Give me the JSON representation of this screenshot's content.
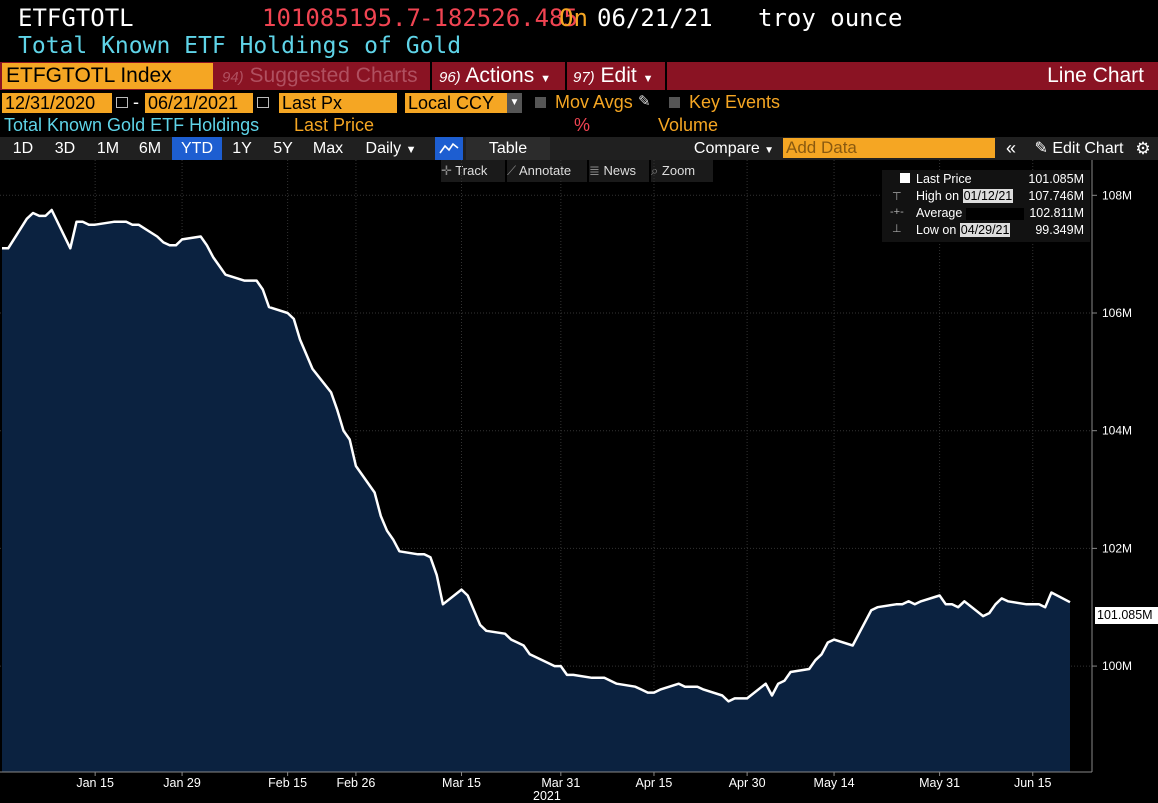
{
  "header": {
    "ticker": "ETFGTOTL",
    "last_value": "101085195.7",
    "change": "-182526.485",
    "on_label": "On",
    "date": "06/21/21",
    "unit": "troy ounce",
    "description": "Total Known ETF Holdings of Gold"
  },
  "menubar": {
    "index": "ETFGTOTL Index",
    "suggested_num": "94)",
    "suggested_label": "Suggested Charts",
    "actions_num": "96)",
    "actions_label": "Actions",
    "edit_num": "97)",
    "edit_label": "Edit",
    "chart_type": "Line Chart"
  },
  "controls": {
    "start_date": "12/31/2020",
    "end_date": "06/21/2021",
    "date_sep": "-",
    "field": "Last Px",
    "currency": "Local CCY",
    "mov_avgs": "Mov Avgs",
    "key_events": "Key Events"
  },
  "legend": {
    "series": "Total Known Gold ETF Holdings",
    "last_price": "Last Price",
    "percent": "%",
    "volume": "Volume"
  },
  "toolbar": {
    "periods": [
      "1D",
      "3D",
      "1M",
      "6M",
      "YTD",
      "1Y",
      "5Y",
      "Max"
    ],
    "active_period": "YTD",
    "frequency": "Daily",
    "table": "Table",
    "compare": "Compare",
    "add_data_placeholder": "Add Data",
    "edit_chart": "Edit Chart"
  },
  "subtools": {
    "track": "Track",
    "annotate": "Annotate",
    "news": "News",
    "zoom": "Zoom"
  },
  "infobox": {
    "last_label": "Last Price",
    "last_value": "101.085M",
    "high_label": "High on",
    "high_date": "01/12/21",
    "high_value": "107.746M",
    "avg_label": "Average",
    "avg_value": "102.811M",
    "low_label": "Low on",
    "low_date": "04/29/21",
    "low_value": "99.349M"
  },
  "colors": {
    "area_fill": "#0b2240",
    "line": "#ffffff",
    "accent": "#f5a623",
    "menubar": "#8a1323",
    "negative": "#f04452",
    "title_cyan": "#5fd4e8"
  },
  "chart_data": {
    "type": "area",
    "title": "Total Known ETF Holdings of Gold",
    "ylabel": "troy ounce",
    "ylim": [
      98.2,
      108.6
    ],
    "y_ticks": [
      100,
      102,
      104,
      106,
      108
    ],
    "y_tick_labels": [
      "100M",
      "102M",
      "104M",
      "106M",
      "108M"
    ],
    "last_value_label": "101.085M",
    "x_ticks": [
      {
        "date": "2021-01-15",
        "label": "Jan 15"
      },
      {
        "date": "2021-01-29",
        "label": "Jan 29"
      },
      {
        "date": "2021-02-15",
        "label": "Feb 15"
      },
      {
        "date": "2021-02-26",
        "label": "Feb 26"
      },
      {
        "date": "2021-03-15",
        "label": "Mar 15"
      },
      {
        "date": "2021-03-31",
        "label": "Mar 31"
      },
      {
        "date": "2021-04-15",
        "label": "Apr 15"
      },
      {
        "date": "2021-04-30",
        "label": "Apr 30"
      },
      {
        "date": "2021-05-14",
        "label": "May 14"
      },
      {
        "date": "2021-05-31",
        "label": "May 31"
      },
      {
        "date": "2021-06-15",
        "label": "Jun 15"
      }
    ],
    "x_year_label": "2021",
    "series": [
      {
        "values": [
          [
            "2020-12-31",
            107.1
          ],
          [
            "2021-01-01",
            107.1
          ],
          [
            "2021-01-04",
            107.6
          ],
          [
            "2021-01-05",
            107.7
          ],
          [
            "2021-01-06",
            107.65
          ],
          [
            "2021-01-07",
            107.65
          ],
          [
            "2021-01-08",
            107.75
          ],
          [
            "2021-01-11",
            107.1
          ],
          [
            "2021-01-12",
            107.55
          ],
          [
            "2021-01-13",
            107.55
          ],
          [
            "2021-01-14",
            107.5
          ],
          [
            "2021-01-15",
            107.5
          ],
          [
            "2021-01-18",
            107.55
          ],
          [
            "2021-01-19",
            107.55
          ],
          [
            "2021-01-20",
            107.55
          ],
          [
            "2021-01-21",
            107.5
          ],
          [
            "2021-01-22",
            107.5
          ],
          [
            "2021-01-25",
            107.3
          ],
          [
            "2021-01-26",
            107.2
          ],
          [
            "2021-01-27",
            107.15
          ],
          [
            "2021-01-28",
            107.15
          ],
          [
            "2021-01-29",
            107.25
          ],
          [
            "2021-02-01",
            107.3
          ],
          [
            "2021-02-02",
            107.15
          ],
          [
            "2021-02-03",
            106.95
          ],
          [
            "2021-02-04",
            106.8
          ],
          [
            "2021-02-05",
            106.65
          ],
          [
            "2021-02-08",
            106.55
          ],
          [
            "2021-02-09",
            106.55
          ],
          [
            "2021-02-10",
            106.55
          ],
          [
            "2021-02-11",
            106.4
          ],
          [
            "2021-02-12",
            106.1
          ],
          [
            "2021-02-15",
            106.0
          ],
          [
            "2021-02-16",
            105.9
          ],
          [
            "2021-02-17",
            105.55
          ],
          [
            "2021-02-18",
            105.3
          ],
          [
            "2021-02-19",
            105.05
          ],
          [
            "2021-02-22",
            104.65
          ],
          [
            "2021-02-23",
            104.35
          ],
          [
            "2021-02-24",
            104.0
          ],
          [
            "2021-02-25",
            103.85
          ],
          [
            "2021-02-26",
            103.4
          ],
          [
            "2021-03-01",
            102.95
          ],
          [
            "2021-03-02",
            102.55
          ],
          [
            "2021-03-03",
            102.3
          ],
          [
            "2021-03-04",
            102.15
          ],
          [
            "2021-03-05",
            101.95
          ],
          [
            "2021-03-08",
            101.9
          ],
          [
            "2021-03-09",
            101.9
          ],
          [
            "2021-03-10",
            101.85
          ],
          [
            "2021-03-11",
            101.55
          ],
          [
            "2021-03-12",
            101.05
          ],
          [
            "2021-03-15",
            101.3
          ],
          [
            "2021-03-16",
            101.2
          ],
          [
            "2021-03-17",
            100.95
          ],
          [
            "2021-03-18",
            100.7
          ],
          [
            "2021-03-19",
            100.6
          ],
          [
            "2021-03-22",
            100.55
          ],
          [
            "2021-03-23",
            100.45
          ],
          [
            "2021-03-24",
            100.4
          ],
          [
            "2021-03-25",
            100.35
          ],
          [
            "2021-03-26",
            100.2
          ],
          [
            "2021-03-29",
            100.05
          ],
          [
            "2021-03-30",
            100.0
          ],
          [
            "2021-03-31",
            100.0
          ],
          [
            "2021-04-01",
            99.85
          ],
          [
            "2021-04-02",
            99.85
          ],
          [
            "2021-04-05",
            99.8
          ],
          [
            "2021-04-06",
            99.8
          ],
          [
            "2021-04-07",
            99.8
          ],
          [
            "2021-04-08",
            99.75
          ],
          [
            "2021-04-09",
            99.7
          ],
          [
            "2021-04-12",
            99.65
          ],
          [
            "2021-04-13",
            99.6
          ],
          [
            "2021-04-14",
            99.55
          ],
          [
            "2021-04-15",
            99.55
          ],
          [
            "2021-04-16",
            99.6
          ],
          [
            "2021-04-19",
            99.7
          ],
          [
            "2021-04-20",
            99.65
          ],
          [
            "2021-04-21",
            99.65
          ],
          [
            "2021-04-22",
            99.65
          ],
          [
            "2021-04-23",
            99.6
          ],
          [
            "2021-04-26",
            99.5
          ],
          [
            "2021-04-27",
            99.4
          ],
          [
            "2021-04-28",
            99.45
          ],
          [
            "2021-04-29",
            99.45
          ],
          [
            "2021-04-30",
            99.45
          ],
          [
            "2021-05-03",
            99.7
          ],
          [
            "2021-05-04",
            99.5
          ],
          [
            "2021-05-05",
            99.7
          ],
          [
            "2021-05-06",
            99.75
          ],
          [
            "2021-05-07",
            99.9
          ],
          [
            "2021-05-10",
            99.95
          ],
          [
            "2021-05-11",
            100.1
          ],
          [
            "2021-05-12",
            100.2
          ],
          [
            "2021-05-13",
            100.4
          ],
          [
            "2021-05-14",
            100.45
          ],
          [
            "2021-05-17",
            100.35
          ],
          [
            "2021-05-18",
            100.55
          ],
          [
            "2021-05-19",
            100.75
          ],
          [
            "2021-05-20",
            100.95
          ],
          [
            "2021-05-21",
            101.0
          ],
          [
            "2021-05-24",
            101.05
          ],
          [
            "2021-05-25",
            101.05
          ],
          [
            "2021-05-26",
            101.1
          ],
          [
            "2021-05-27",
            101.05
          ],
          [
            "2021-05-28",
            101.1
          ],
          [
            "2021-05-31",
            101.2
          ],
          [
            "2021-06-01",
            101.05
          ],
          [
            "2021-06-02",
            101.05
          ],
          [
            "2021-06-03",
            101.0
          ],
          [
            "2021-06-04",
            101.1
          ],
          [
            "2021-06-07",
            100.85
          ],
          [
            "2021-06-08",
            100.9
          ],
          [
            "2021-06-09",
            101.05
          ],
          [
            "2021-06-10",
            101.15
          ],
          [
            "2021-06-11",
            101.1
          ],
          [
            "2021-06-14",
            101.05
          ],
          [
            "2021-06-15",
            101.05
          ],
          [
            "2021-06-16",
            101.05
          ],
          [
            "2021-06-17",
            101.0
          ],
          [
            "2021-06-18",
            101.25
          ],
          [
            "2021-06-21",
            101.085
          ]
        ]
      }
    ]
  }
}
